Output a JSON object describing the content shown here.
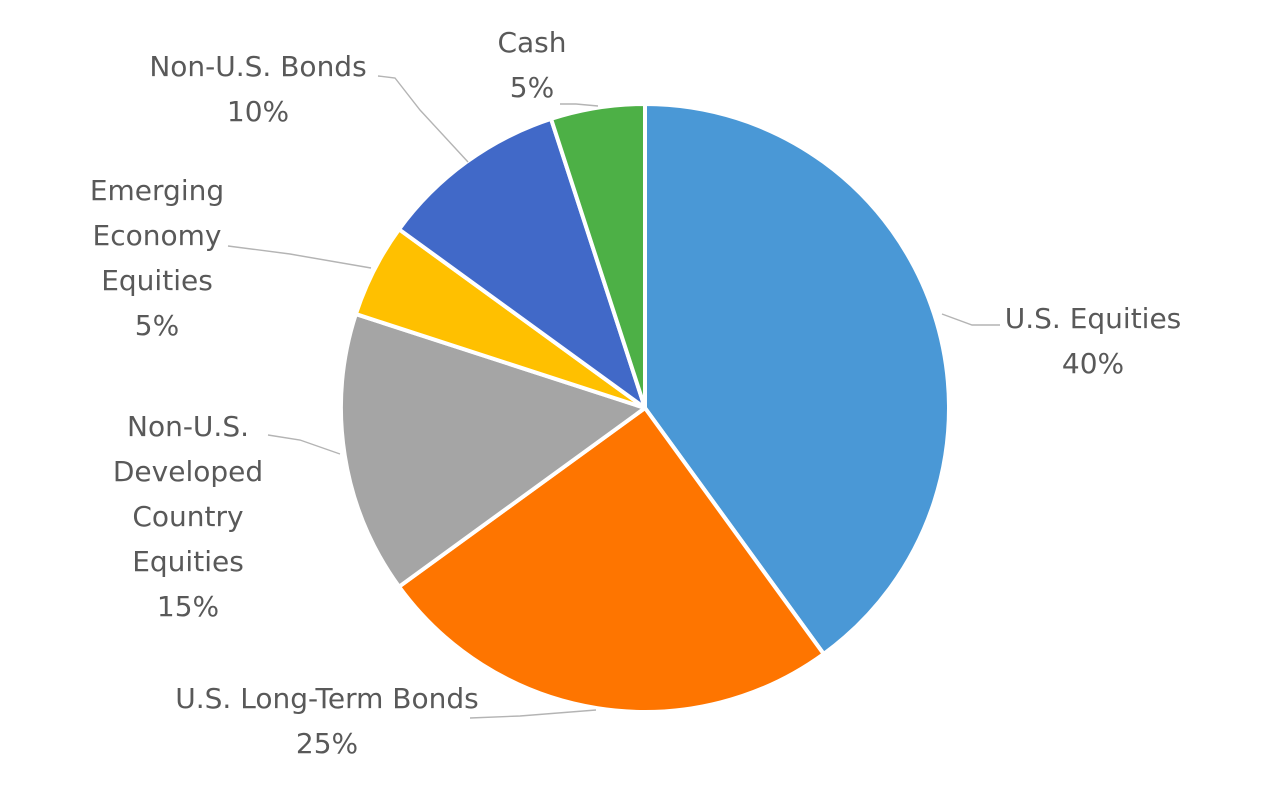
{
  "chart_data": {
    "type": "pie",
    "title": "",
    "slices": [
      {
        "name": "U.S. Equities",
        "label_lines": [
          "U.S. Equities",
          "40%"
        ],
        "value": 40,
        "color": "#4a98d6"
      },
      {
        "name": "U.S. Long-Term Bonds",
        "label_lines": [
          "U.S. Long-Term Bonds",
          "25%"
        ],
        "value": 25,
        "color": "#fe7500"
      },
      {
        "name": "Non-U.S. Developed Country Equities",
        "label_lines": [
          "Non-U.S.",
          "Developed",
          "Country",
          "Equities",
          "15%"
        ],
        "value": 15,
        "color": "#a5a5a5"
      },
      {
        "name": "Emerging Economy Equities",
        "label_lines": [
          "Emerging",
          "Economy",
          "Equities",
          "5%"
        ],
        "value": 5,
        "color": "#ffc000"
      },
      {
        "name": "Non-U.S. Bonds",
        "label_lines": [
          "Non-U.S. Bonds",
          "10%"
        ],
        "value": 10,
        "color": "#4169c8"
      },
      {
        "name": "Cash",
        "label_lines": [
          "Cash",
          "5%"
        ],
        "value": 5,
        "color": "#4db046"
      }
    ]
  }
}
